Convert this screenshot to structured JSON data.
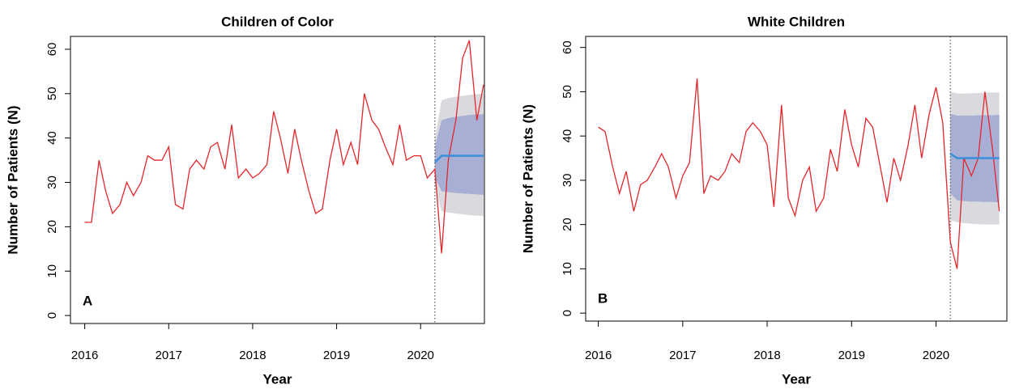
{
  "chart_data": [
    {
      "type": "line",
      "title": "Children of Color",
      "xlabel": "Year",
      "ylabel": "Number of Patients (N)",
      "panel_label": "A",
      "x": [
        2016,
        2016.08,
        2016.17,
        2016.25,
        2016.33,
        2016.42,
        2016.5,
        2016.58,
        2016.67,
        2016.75,
        2016.83,
        2016.92,
        2017,
        2017.08,
        2017.17,
        2017.25,
        2017.33,
        2017.42,
        2017.5,
        2017.58,
        2017.67,
        2017.75,
        2017.83,
        2017.92,
        2018,
        2018.08,
        2018.17,
        2018.25,
        2018.33,
        2018.42,
        2018.5,
        2018.58,
        2018.67,
        2018.75,
        2018.83,
        2018.92,
        2019,
        2019.08,
        2019.17,
        2019.25,
        2019.33,
        2019.42,
        2019.5,
        2019.58,
        2019.67,
        2019.75,
        2019.83,
        2019.92,
        2020,
        2020.08,
        2020.17,
        2020.25,
        2020.33,
        2020.42,
        2020.5,
        2020.58,
        2020.67,
        2020.75
      ],
      "series": [
        {
          "color": "#e3262b",
          "values": [
            21,
            21,
            35,
            28,
            23,
            25,
            30,
            27,
            30,
            36,
            35,
            35,
            38,
            25,
            24,
            33,
            35,
            33,
            38,
            39,
            33,
            43,
            31,
            33,
            31,
            32,
            34,
            46,
            40,
            32,
            42,
            35,
            28,
            23,
            24,
            35,
            42,
            34,
            39,
            34,
            50,
            44,
            42,
            38,
            34,
            43,
            35,
            36,
            36,
            31,
            33,
            14,
            35,
            44,
            58,
            62,
            44,
            52
          ]
        }
      ],
      "forecast": {
        "x": [
          2020.17,
          2020.25,
          2020.33,
          2020.42,
          2020.5,
          2020.58,
          2020.67,
          2020.75
        ],
        "color": "#3a8fdc",
        "band80_color": "#a8afd4",
        "band95_color": "#dadade",
        "mean": [
          34.5,
          36,
          36,
          36,
          36,
          36,
          36,
          36
        ],
        "lower80": [
          31,
          28,
          27.8,
          27.6,
          27.5,
          27.4,
          27.3,
          27.2
        ],
        "upper80": [
          38,
          44,
          44.5,
          44.8,
          45,
          45.2,
          45.3,
          45.4
        ],
        "lower95": [
          29,
          23.5,
          23.2,
          23,
          22.8,
          22.6,
          22.5,
          22.4
        ],
        "upper95": [
          40,
          48.5,
          49,
          49.3,
          49.5,
          49.7,
          49.9,
          50
        ]
      },
      "xlim": [
        2015.83,
        2020.76
      ],
      "xticks": [
        2016,
        2017,
        2018,
        2019,
        2020
      ],
      "ylim": [
        -1.8,
        62.9
      ],
      "yticks": [
        0,
        10,
        20,
        30,
        40,
        50,
        60
      ]
    },
    {
      "type": "line",
      "title": "White Children",
      "xlabel": "Year",
      "ylabel": "Number of Patients (N)",
      "panel_label": "B",
      "x": [
        2016,
        2016.08,
        2016.17,
        2016.25,
        2016.33,
        2016.42,
        2016.5,
        2016.58,
        2016.67,
        2016.75,
        2016.83,
        2016.92,
        2017,
        2017.08,
        2017.17,
        2017.25,
        2017.33,
        2017.42,
        2017.5,
        2017.58,
        2017.67,
        2017.75,
        2017.83,
        2017.92,
        2018,
        2018.08,
        2018.17,
        2018.25,
        2018.33,
        2018.42,
        2018.5,
        2018.58,
        2018.67,
        2018.75,
        2018.83,
        2018.92,
        2019,
        2019.08,
        2019.17,
        2019.25,
        2019.33,
        2019.42,
        2019.5,
        2019.58,
        2019.67,
        2019.75,
        2019.83,
        2019.92,
        2020,
        2020.08,
        2020.17,
        2020.25,
        2020.33,
        2020.42,
        2020.5,
        2020.58,
        2020.67,
        2020.75
      ],
      "series": [
        {
          "color": "#e3262b",
          "values": [
            42,
            41,
            33,
            27,
            32,
            23,
            29,
            30,
            33,
            36,
            33,
            26,
            31,
            34,
            53,
            27,
            31,
            30,
            32,
            36,
            34,
            41,
            43,
            41,
            38,
            24,
            47,
            26,
            22,
            30,
            33,
            23,
            26,
            37,
            32,
            46,
            38,
            33,
            44,
            42,
            34,
            25,
            35,
            30,
            38,
            47,
            35,
            45,
            51,
            43,
            16,
            10,
            35,
            31,
            35,
            50,
            37,
            23
          ]
        }
      ],
      "forecast": {
        "x": [
          2020.17,
          2020.25,
          2020.33,
          2020.42,
          2020.5,
          2020.58,
          2020.67,
          2020.75
        ],
        "color": "#3a8fdc",
        "band80_color": "#a8afd4",
        "band95_color": "#dadade",
        "mean": [
          36,
          35,
          35,
          35,
          35,
          35,
          35,
          35
        ],
        "lower80": [
          27,
          25.5,
          25.3,
          25.2,
          25.2,
          25.1,
          25.1,
          25
        ],
        "upper80": [
          45,
          44.6,
          44.6,
          44.6,
          44.7,
          44.7,
          44.7,
          44.8
        ],
        "lower95": [
          21,
          20.5,
          20.3,
          20.2,
          20.1,
          20,
          20,
          20
        ],
        "upper95": [
          50,
          49.6,
          49.6,
          49.7,
          49.7,
          49.8,
          49.8,
          49.9
        ]
      },
      "xlim": [
        2015.85,
        2020.84
      ],
      "xticks": [
        2016,
        2017,
        2018,
        2019,
        2020
      ],
      "ylim": [
        -1.8,
        62.5
      ],
      "yticks": [
        0,
        10,
        20,
        30,
        40,
        50,
        60
      ]
    }
  ]
}
